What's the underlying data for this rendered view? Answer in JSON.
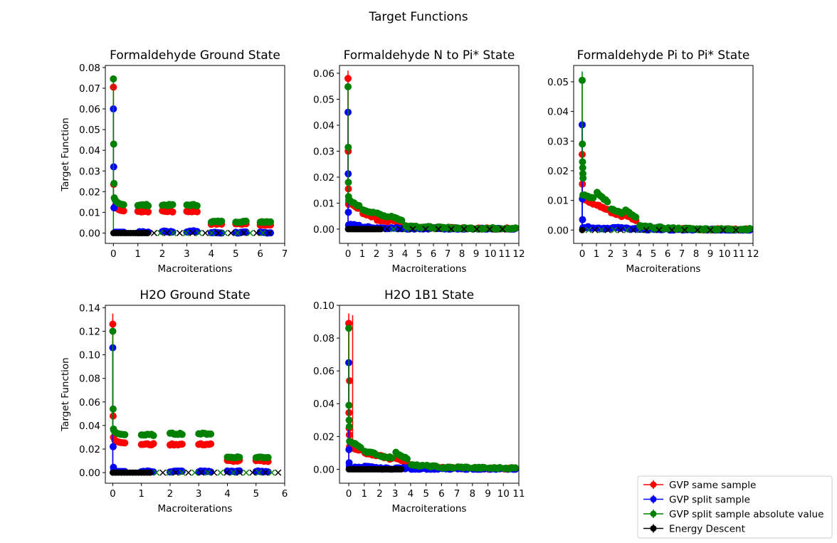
{
  "figure_title": "Target Functions",
  "colors": {
    "same": "#ff0000",
    "split": "#0000ff",
    "abs": "#008000",
    "energy": "#000000"
  },
  "legend": {
    "placement": "bottom-right",
    "entries": [
      {
        "label": "GVP same sample",
        "key": "same"
      },
      {
        "label": "GVP split sample",
        "key": "split"
      },
      {
        "label": "GVP split sample absolute value",
        "key": "abs"
      },
      {
        "label": "Energy Descent",
        "key": "energy"
      }
    ]
  },
  "chart_data": [
    {
      "type": "scatter",
      "title": "Formaldehyde Ground State",
      "xlabel": "Macroiterations",
      "ylabel": "Target Function",
      "xlim": [
        -0.33,
        7.0
      ],
      "ylim": [
        -0.005,
        0.081
      ],
      "xticks": [
        0,
        1,
        2,
        3,
        4,
        5,
        6,
        7
      ],
      "yticks": [
        0.0,
        0.01,
        0.02,
        0.03,
        0.04,
        0.05,
        0.06,
        0.07,
        0.08
      ],
      "ydecimals": 2,
      "n_macro": 7,
      "early_steps": 6,
      "initial": {
        "same": [
          0.0705,
          0.0235,
          0.0122
        ],
        "split": [
          0.06,
          0.032,
          0.0122
        ],
        "abs": [
          0.0745,
          0.043,
          0.024,
          0.017
        ]
      },
      "plateau": {
        "same": [
          0.0105,
          0.0105,
          0.0105,
          0.0105,
          0.0045,
          0.0045,
          0.004
        ],
        "split": [
          0.0004,
          0.0004,
          0.0008,
          0.0008,
          0.0002,
          0.0002,
          0.0002
        ],
        "abs": [
          0.0135,
          0.0135,
          0.0135,
          0.0135,
          0.0055,
          0.0055,
          0.0055
        ]
      },
      "points_per_macro": 7,
      "energy_dots_until": 1.4,
      "cross_until": 6.6,
      "err_bars": [
        {
          "x": 0,
          "lo": 0.0,
          "hi": 0.0745,
          "color": "abs"
        }
      ]
    },
    {
      "type": "scatter",
      "title": "Formaldehyde N to Pi* State",
      "xlabel": "Macroiterations",
      "ylabel": "",
      "xlim": [
        -0.6,
        12.0
      ],
      "ylim": [
        -0.0055,
        0.063
      ],
      "xticks": [
        0,
        1,
        2,
        3,
        4,
        5,
        6,
        7,
        8,
        9,
        10,
        11,
        12
      ],
      "yticks": [
        0.0,
        0.01,
        0.02,
        0.03,
        0.04,
        0.05,
        0.06
      ],
      "ydecimals": 2,
      "n_macro": 12,
      "early_steps": 5,
      "initial": {
        "same": [
          0.058,
          0.03,
          0.0155,
          0.0095
        ],
        "split": [
          0.045,
          0.0213,
          0.0065,
          0.0015
        ],
        "abs": [
          0.0548,
          0.0315,
          0.018,
          0.0125
        ]
      },
      "decay": {
        "same": [
          0.0075,
          0.0045,
          0.0028,
          0.0022,
          0.0007,
          0.0004,
          0.0003,
          0.0003,
          0.0002,
          0.0002,
          0.0002,
          0.0002
        ],
        "split": [
          0.0012,
          0.0006,
          0.0004,
          0.0003,
          0.0002,
          0.0002,
          0.0002,
          0.0001,
          0.0001,
          0.0001,
          0.0001,
          0.0001
        ],
        "abs": [
          0.0085,
          0.006,
          0.0045,
          0.003,
          0.001,
          0.0007,
          0.0005,
          0.0004,
          0.0003,
          0.0003,
          0.0003,
          0.0003
        ]
      },
      "points_per_macro": 7,
      "energy_dots_until": 2.3,
      "cross_until": 11.5,
      "err_bars": [
        {
          "x": 0,
          "lo": 0.0,
          "hi": 0.061,
          "color": "same"
        }
      ]
    },
    {
      "type": "scatter",
      "title": "Formaldehyde Pi to Pi* State",
      "xlabel": "Macroiterations",
      "ylabel": "",
      "xlim": [
        -0.6,
        12.0
      ],
      "ylim": [
        -0.0045,
        0.0555
      ],
      "xticks": [
        0,
        1,
        2,
        3,
        4,
        5,
        6,
        7,
        8,
        9,
        10,
        11,
        12
      ],
      "yticks": [
        0.0,
        0.01,
        0.02,
        0.03,
        0.04,
        0.05
      ],
      "ydecimals": 2,
      "n_macro": 12,
      "early_steps": 5,
      "initial": {
        "same": [
          0.0255,
          0.0155,
          0.0105
        ],
        "split": [
          0.0355,
          0.0105,
          0.0035,
          0.0005
        ],
        "abs": [
          0.0505,
          0.029,
          0.023,
          0.021,
          0.019,
          0.0175
        ]
      },
      "decay": {
        "same": [
          0.0085,
          0.0065,
          0.0045,
          0.003,
          0.0008,
          0.0005,
          0.0003,
          0.0003,
          0.0002,
          0.0002,
          0.0002,
          0.0002
        ],
        "split": [
          0.0008,
          0.0006,
          0.0006,
          0.0004,
          0.0002,
          0.0002,
          0.0001,
          0.0001,
          0.0001,
          0.0001,
          0.0001,
          0.0001
        ],
        "abs": [
          0.0105,
          0.009,
          0.0055,
          0.0038,
          0.001,
          0.0007,
          0.0005,
          0.0004,
          0.0003,
          0.0003,
          0.0003,
          0.0003
        ]
      },
      "points_per_macro": 7,
      "energy_dots_until": 0,
      "cross_until": 11.6,
      "err_bars": [
        {
          "x": 0,
          "lo": 0.0,
          "hi": 0.0535,
          "color": "abs"
        },
        {
          "x": 0,
          "lo": 0.0,
          "hi": 0.036,
          "color": "split"
        }
      ]
    },
    {
      "type": "scatter",
      "title": "H2O Ground State",
      "xlabel": "Macroiterations",
      "ylabel": "Target Function",
      "xlim": [
        -0.26,
        6.0
      ],
      "ylim": [
        -0.009,
        0.142
      ],
      "xticks": [
        0,
        1,
        2,
        3,
        4,
        5,
        6
      ],
      "yticks": [
        0.0,
        0.02,
        0.04,
        0.06,
        0.08,
        0.1,
        0.12,
        0.14
      ],
      "ydecimals": 2,
      "n_macro": 6,
      "early_steps": 6,
      "initial": {
        "same": [
          0.126,
          0.048,
          0.03
        ],
        "split": [
          0.106,
          0.022,
          0.0045,
          0.002
        ],
        "abs": [
          0.12,
          0.054,
          0.037,
          0.036
        ]
      },
      "plateau": {
        "same": [
          0.025,
          0.024,
          0.024,
          0.024,
          0.01,
          0.01
        ],
        "split": [
          0.001,
          0.001,
          0.001,
          0.001,
          0.001,
          0.001
        ],
        "abs": [
          0.032,
          0.032,
          0.033,
          0.033,
          0.013,
          0.013
        ]
      },
      "points_per_macro": 7,
      "energy_dots_until": 1.3,
      "cross_until": 5.8,
      "err_bars": [
        {
          "x": 0,
          "lo": 0.0,
          "hi": 0.135,
          "color": "same"
        }
      ]
    },
    {
      "type": "scatter",
      "title": "H2O 1B1 State",
      "xlabel": "Macroiterations",
      "ylabel": "",
      "xlim": [
        -0.6,
        11.0
      ],
      "ylim": [
        -0.0085,
        0.1
      ],
      "xticks": [
        0,
        1,
        2,
        3,
        4,
        5,
        6,
        7,
        8,
        9,
        10,
        11
      ],
      "yticks": [
        0.0,
        0.02,
        0.04,
        0.06,
        0.08,
        0.1
      ],
      "ydecimals": 2,
      "n_macro": 11,
      "early_steps": 5,
      "initial": {
        "same": [
          0.089,
          0.0345,
          0.025,
          0.021,
          0.054
        ],
        "split": [
          0.065,
          0.012,
          0.004,
          0.002
        ],
        "abs": [
          0.086,
          0.039,
          0.03,
          0.026
        ]
      },
      "decay": {
        "same": [
          0.011,
          0.008,
          0.006,
          0.004,
          0.0015,
          0.001,
          0.0008,
          0.0006,
          0.0005,
          0.0004,
          0.0004
        ],
        "split": [
          0.001,
          0.001,
          0.0005,
          0.0005,
          0.0003,
          0.0002,
          0.0002,
          0.0002,
          0.0001,
          0.0001,
          0.0001
        ],
        "abs": [
          0.013,
          0.009,
          0.007,
          0.006,
          0.002,
          0.0015,
          0.001,
          0.001,
          0.0008,
          0.0007,
          0.0007
        ]
      },
      "points_per_macro": 7,
      "energy_dots_until": 3.4,
      "cross_until": 0,
      "err_bars": [
        {
          "x": 0,
          "lo": 0.0,
          "hi": 0.095,
          "color": "same"
        },
        {
          "x": 0.25,
          "lo": 0.015,
          "hi": 0.094,
          "color": "same"
        }
      ]
    }
  ]
}
